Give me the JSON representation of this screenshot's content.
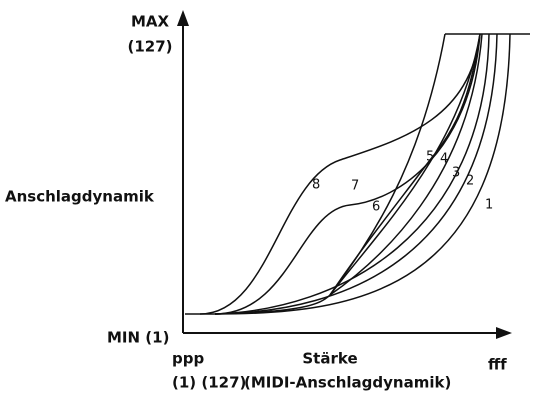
{
  "axis": {
    "y_max": "MAX",
    "y_max_value": "(127)",
    "y_label": "Anschlagdynamik",
    "y_min": "MIN (1)",
    "x_min": "ppp",
    "x_label": "Stärke",
    "x_max": "fff",
    "x_range": "(1) (127)",
    "x_unit": "(MIDI-Anschlagdynamik)"
  },
  "curves": [
    {
      "label": "1"
    },
    {
      "label": "2"
    },
    {
      "label": "3"
    },
    {
      "label": "4"
    },
    {
      "label": "5"
    },
    {
      "label": "6"
    },
    {
      "label": "7"
    },
    {
      "label": "8"
    }
  ]
}
